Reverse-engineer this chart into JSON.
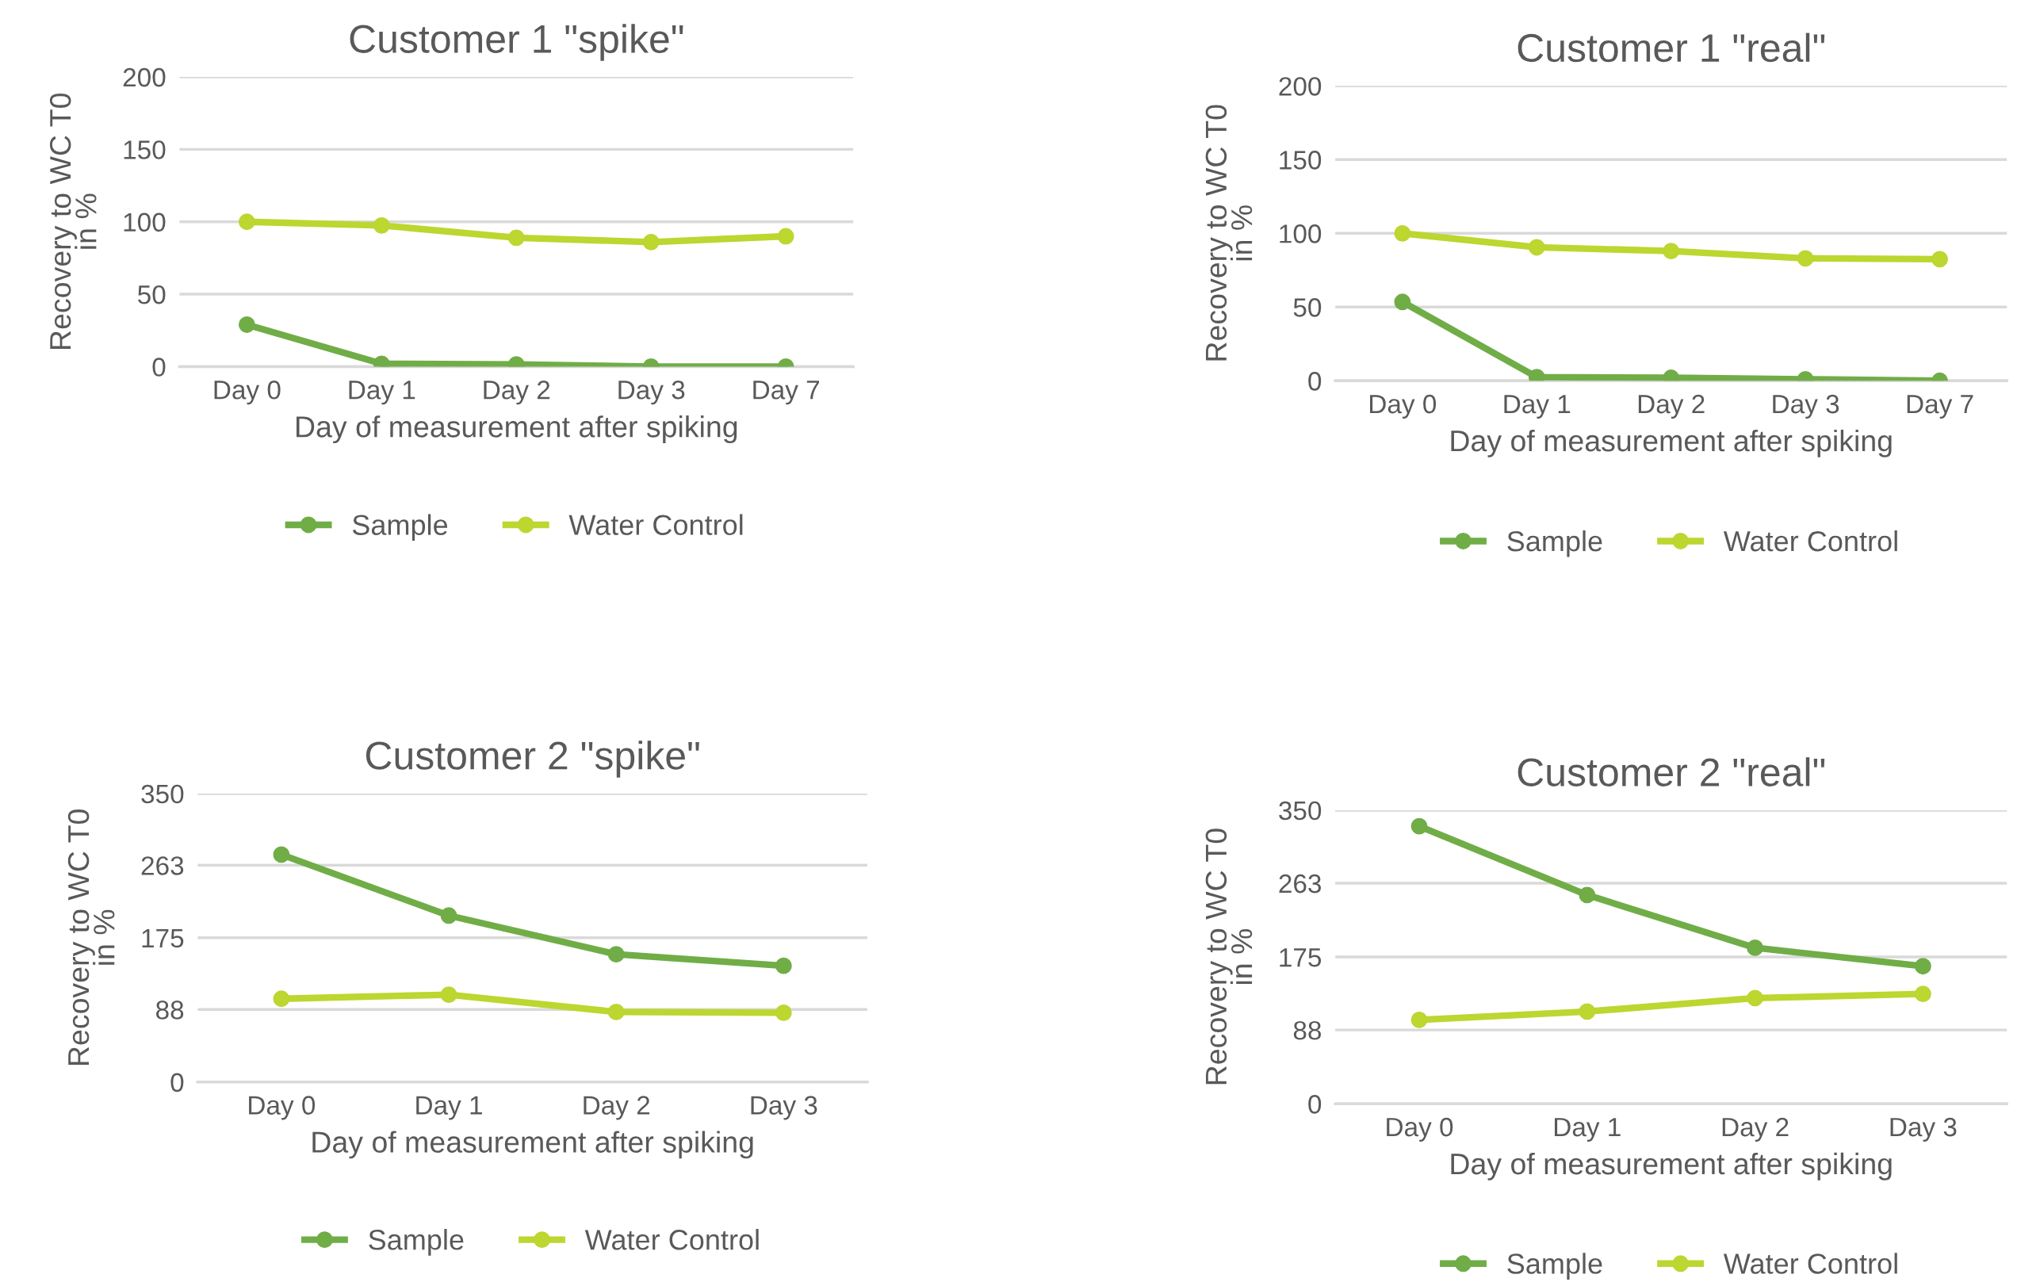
{
  "chart_data": [
    {
      "type": "line",
      "title": "Customer 1 \"spike\"",
      "xlabel": "Day of measurement after spiking",
      "ylabel": "Recovery to WC T0\nin %",
      "categories": [
        "Day 0",
        "Day 1",
        "Day 2",
        "Day 3",
        "Day 7"
      ],
      "ylim": [
        0,
        200
      ],
      "yticks": [
        0,
        50,
        100,
        150,
        200
      ],
      "grid": "y",
      "legend": "bottom",
      "marker": "circle",
      "line_style": "solid",
      "series": [
        {
          "name": "Sample",
          "color": "#70ad47",
          "values": [
            29,
            2,
            1.5,
            0,
            0
          ]
        },
        {
          "name": "Water Control",
          "color": "#bdd630",
          "values": [
            100,
            97.5,
            89,
            86,
            90
          ]
        }
      ]
    },
    {
      "type": "line",
      "title": "Customer 1 \"real\"",
      "xlabel": "Day of measurement after spiking",
      "ylabel": "Recovery to WC T0\nin %",
      "categories": [
        "Day 0",
        "Day 1",
        "Day 2",
        "Day 3",
        "Day 7"
      ],
      "ylim": [
        0,
        200
      ],
      "yticks": [
        0,
        50,
        100,
        150,
        200
      ],
      "grid": "y",
      "legend": "bottom",
      "marker": "circle",
      "line_style": "solid",
      "series": [
        {
          "name": "Sample",
          "color": "#70ad47",
          "values": [
            53.5,
            2.5,
            2,
            1,
            0
          ]
        },
        {
          "name": "Water Control",
          "color": "#bdd630",
          "values": [
            100,
            90.5,
            88,
            83,
            82.5
          ]
        }
      ]
    },
    {
      "type": "line",
      "title": "Customer 2 \"spike\"",
      "xlabel": "Day of measurement after spiking",
      "ylabel": "Recovery to WC T0\nin %",
      "categories": [
        "Day 0",
        "Day 1",
        "Day 2",
        "Day 3"
      ],
      "ylim": [
        0,
        350
      ],
      "yticks": [
        0,
        88,
        175,
        263,
        350
      ],
      "grid": "y",
      "legend": "bottom",
      "marker": "circle",
      "line_style": "solid",
      "series": [
        {
          "name": "Sample",
          "color": "#70ad47",
          "values": [
            276,
            202,
            155,
            141
          ]
        },
        {
          "name": "Water Control",
          "color": "#bdd630",
          "values": [
            101,
            106,
            85,
            84
          ]
        }
      ]
    },
    {
      "type": "line",
      "title": "Customer 2 \"real\"",
      "xlabel": "Day of measurement after spiking",
      "ylabel": "Recovery to WC T0\nin %",
      "categories": [
        "Day 0",
        "Day 1",
        "Day 2",
        "Day 3"
      ],
      "ylim": [
        0,
        350
      ],
      "yticks": [
        0,
        88,
        175,
        263,
        350
      ],
      "grid": "y",
      "legend": "bottom",
      "marker": "circle",
      "line_style": "solid",
      "series": [
        {
          "name": "Sample",
          "color": "#70ad47",
          "values": [
            331,
            249,
            186,
            164
          ]
        },
        {
          "name": "Water Control",
          "color": "#bdd630",
          "values": [
            100,
            110,
            126,
            131
          ]
        }
      ]
    }
  ]
}
